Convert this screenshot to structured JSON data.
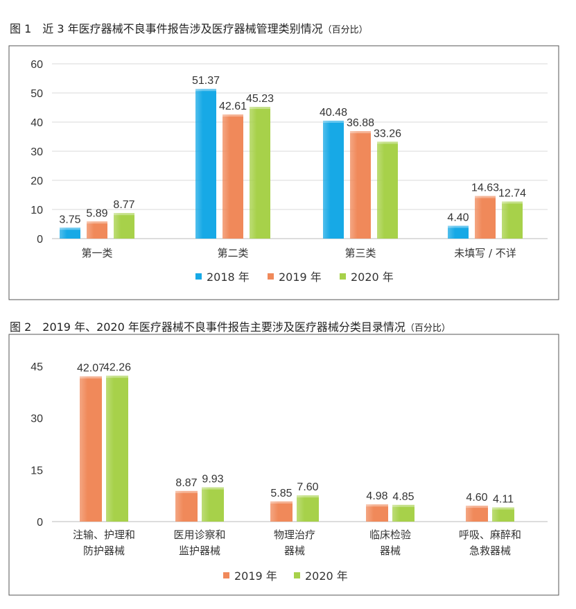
{
  "colors": {
    "2018": "#17a9e6",
    "2019": "#f0895a",
    "2020": "#a7d14a"
  },
  "chart_data": [
    {
      "type": "bar",
      "title": "图 1　近 3 年医疗器械不良事件报告涉及医疗器械管理类别情况",
      "title_unit": "（百分比）",
      "categories": [
        "第一类",
        "第二类",
        "第三类",
        "未填写 / 不详"
      ],
      "series": [
        {
          "name": "2018 年",
          "values": [
            3.75,
            51.37,
            40.48,
            4.4
          ],
          "labels": [
            "3.75",
            "51.37",
            "40.48",
            "4.40"
          ]
        },
        {
          "name": "2019 年",
          "values": [
            5.89,
            42.61,
            36.88,
            14.63
          ],
          "labels": [
            "5.89",
            "42.61",
            "36.88",
            "14.63"
          ]
        },
        {
          "name": "2020 年",
          "values": [
            8.77,
            45.23,
            33.26,
            12.74
          ],
          "labels": [
            "8.77",
            "45.23",
            "33.26",
            "12.74"
          ]
        }
      ],
      "ylim": [
        0,
        60
      ],
      "yticks": [
        "0",
        "10",
        "20",
        "30",
        "40",
        "50",
        "60"
      ],
      "grid": true,
      "legend": "bottom"
    },
    {
      "type": "bar",
      "title": "图 2　2019 年、2020 年医疗器械不良事件报告主要涉及医疗器械分类目录情况",
      "title_unit": "（百分比）",
      "categories": [
        [
          "注输、护理和",
          "防护器械"
        ],
        [
          "医用诊察和",
          "监护器械"
        ],
        [
          "物理治疗",
          "器械"
        ],
        [
          "临床检验",
          "器械"
        ],
        [
          "呼吸、麻醉和",
          "急救器械"
        ]
      ],
      "series": [
        {
          "name": "2019 年",
          "values": [
            42.07,
            8.87,
            5.85,
            4.98,
            4.6
          ],
          "labels": [
            "42.07",
            "8.87",
            "5.85",
            "4.98",
            "4.60"
          ]
        },
        {
          "name": "2020 年",
          "values": [
            42.26,
            9.93,
            7.6,
            4.85,
            4.11
          ],
          "labels": [
            "42.26",
            "9.93",
            "7.60",
            "4.85",
            "4.11"
          ]
        }
      ],
      "ylim": [
        0,
        45
      ],
      "yticks": [
        "0",
        "15",
        "30",
        "45"
      ],
      "grid": false,
      "legend": "bottom"
    }
  ]
}
